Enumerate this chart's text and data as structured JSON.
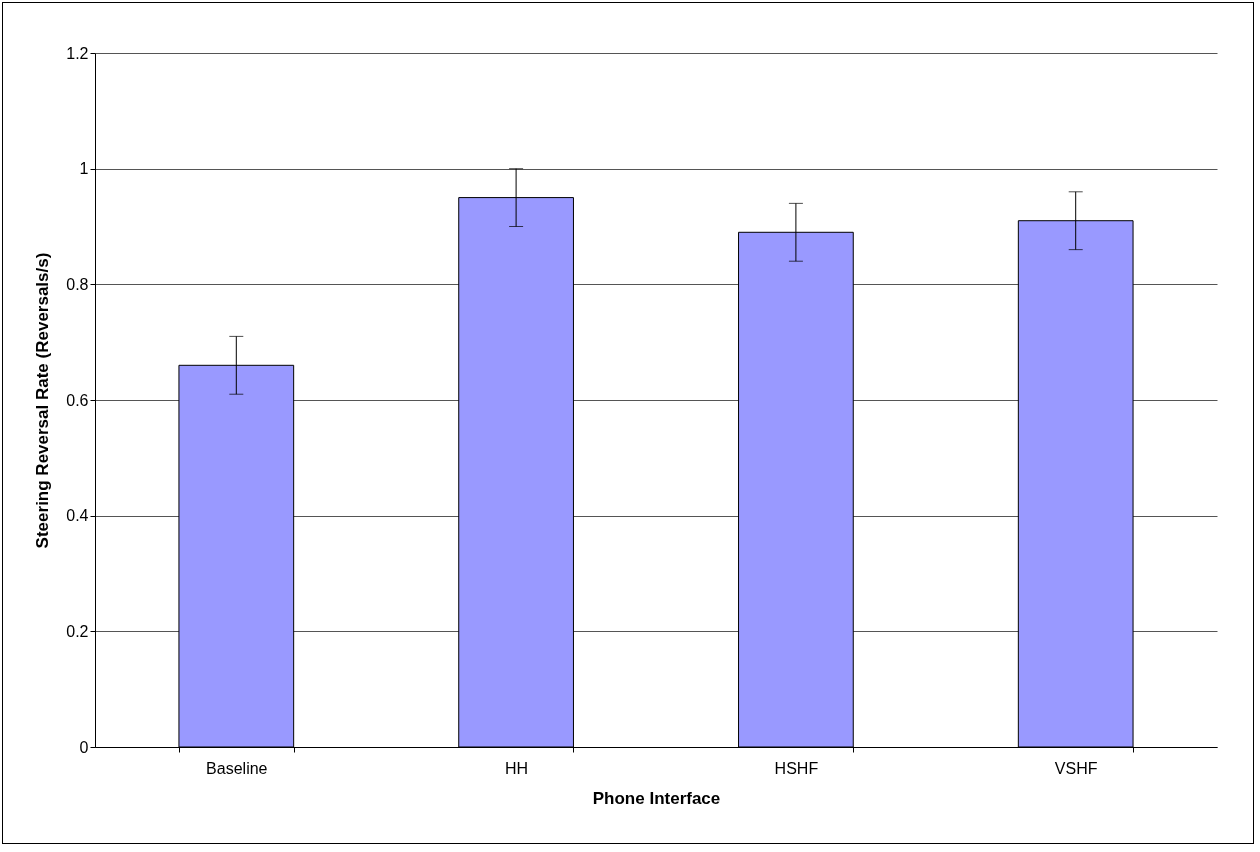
{
  "chart_data": {
    "type": "bar",
    "xlabel": "Phone Interface",
    "ylabel": "Steering Reversal Rate (Reversals/s)",
    "categories": [
      "Baseline",
      "HH",
      "HSHF",
      "VSHF"
    ],
    "series": [
      {
        "color": "#9999ff",
        "values": [
          0.66,
          0.95,
          0.89,
          0.91
        ],
        "errors": [
          0.05,
          0.05,
          0.05,
          0.05
        ]
      }
    ],
    "ylim": [
      0,
      1.2
    ],
    "yticks": [
      0,
      0.2,
      0.4,
      0.6,
      0.8,
      1,
      1.2
    ],
    "grid": "y"
  }
}
